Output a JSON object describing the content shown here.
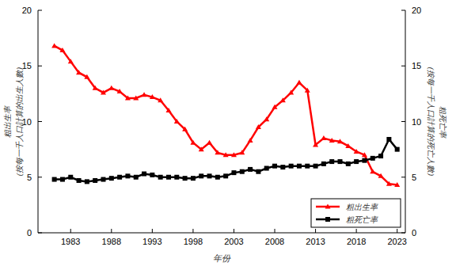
{
  "chart_data": {
    "type": "line",
    "x_label": "年份",
    "y_label": [
      "粗出生率",
      "(按每一千人口計算的出生人數)"
    ],
    "y2_label": [
      "粗死亡率",
      "(按每一千人口計算的死亡人數)"
    ],
    "x": [
      1981,
      1982,
      1983,
      1984,
      1985,
      1986,
      1987,
      1988,
      1989,
      1990,
      1991,
      1992,
      1993,
      1994,
      1995,
      1996,
      1997,
      1998,
      1999,
      2000,
      2001,
      2002,
      2003,
      2004,
      2005,
      2006,
      2007,
      2008,
      2009,
      2010,
      2011,
      2012,
      2013,
      2014,
      2015,
      2016,
      2017,
      2018,
      2019,
      2020,
      2021,
      2022,
      2023
    ],
    "xlim": [
      1979,
      2024
    ],
    "xticks": [
      1983,
      1988,
      1993,
      1998,
      2003,
      2008,
      2013,
      2018,
      2023
    ],
    "ylim": [
      0,
      20
    ],
    "yticks": [
      0,
      5,
      10,
      15,
      20
    ],
    "y2lim": [
      0,
      20
    ],
    "y2ticks": [
      0,
      5,
      10,
      15,
      20
    ],
    "legend": "lower right",
    "series": [
      {
        "name": "粗出生率",
        "color": "#ff0000",
        "marker": "triangle",
        "axis": "y",
        "values": [
          16.8,
          16.4,
          15.4,
          14.4,
          14.0,
          13.0,
          12.6,
          13.0,
          12.7,
          12.1,
          12.1,
          12.4,
          12.2,
          11.9,
          11.0,
          10.0,
          9.3,
          8.1,
          7.5,
          8.1,
          7.2,
          7.0,
          7.0,
          7.2,
          8.3,
          9.5,
          10.2,
          11.3,
          11.9,
          12.6,
          13.5,
          12.8,
          7.9,
          8.5,
          8.3,
          8.2,
          7.8,
          7.3,
          7.0,
          5.5,
          5.1,
          4.4,
          4.3
        ]
      },
      {
        "name": "粗死亡率",
        "color": "#000000",
        "marker": "square",
        "axis": "y2",
        "values": [
          4.8,
          4.8,
          5.0,
          4.7,
          4.6,
          4.7,
          4.8,
          4.9,
          5.0,
          5.1,
          5.0,
          5.3,
          5.2,
          5.0,
          5.0,
          5.0,
          4.9,
          4.9,
          5.1,
          5.1,
          5.0,
          5.1,
          5.4,
          5.5,
          5.7,
          5.5,
          5.8,
          6.0,
          5.9,
          6.0,
          6.0,
          6.0,
          6.0,
          6.2,
          6.4,
          6.4,
          6.2,
          6.4,
          6.5,
          6.7,
          6.9,
          8.4,
          7.5
        ]
      }
    ]
  }
}
